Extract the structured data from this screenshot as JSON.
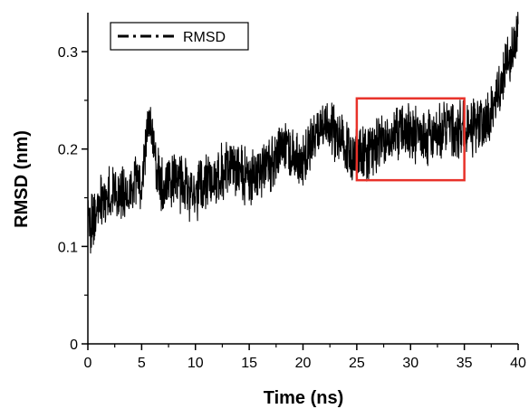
{
  "chart_data": {
    "type": "line",
    "xlabel": "Time (ns)",
    "ylabel": "RMSD (nm)",
    "xlim": [
      0,
      40
    ],
    "ylim": [
      0,
      0.34
    ],
    "x_ticks": [
      0,
      5,
      10,
      15,
      20,
      25,
      30,
      35,
      40
    ],
    "y_ticks": [
      0,
      0.1,
      0.2,
      0.3
    ],
    "y_tick_labels": [
      "0",
      "0.1",
      "0.2",
      "0.3"
    ],
    "grid": false,
    "legend_position": "top-left",
    "series": [
      {
        "name": "RMSD",
        "color": "#000000",
        "line_style": "dash-dot",
        "x": [
          0,
          1,
          2,
          3,
          4,
          5,
          5.8,
          6.5,
          7,
          8,
          9,
          10,
          11,
          12,
          13,
          14,
          15,
          16,
          17,
          18,
          19,
          20,
          21,
          21.8,
          22.5,
          23,
          24,
          24.5,
          25,
          26,
          27,
          28,
          29,
          30,
          31,
          32,
          33,
          34,
          35,
          36,
          37,
          38,
          39,
          40
        ],
        "y": [
          0.12,
          0.14,
          0.155,
          0.15,
          0.16,
          0.165,
          0.235,
          0.17,
          0.165,
          0.17,
          0.16,
          0.155,
          0.165,
          0.17,
          0.185,
          0.18,
          0.17,
          0.175,
          0.185,
          0.2,
          0.195,
          0.185,
          0.21,
          0.23,
          0.22,
          0.215,
          0.205,
          0.185,
          0.2,
          0.195,
          0.205,
          0.21,
          0.22,
          0.215,
          0.21,
          0.215,
          0.22,
          0.22,
          0.22,
          0.225,
          0.23,
          0.25,
          0.29,
          0.315
        ]
      }
    ],
    "highlight_box": {
      "x_range": [
        25,
        35
      ],
      "y_range": [
        0.168,
        0.252
      ],
      "color": "#e8322a"
    }
  }
}
